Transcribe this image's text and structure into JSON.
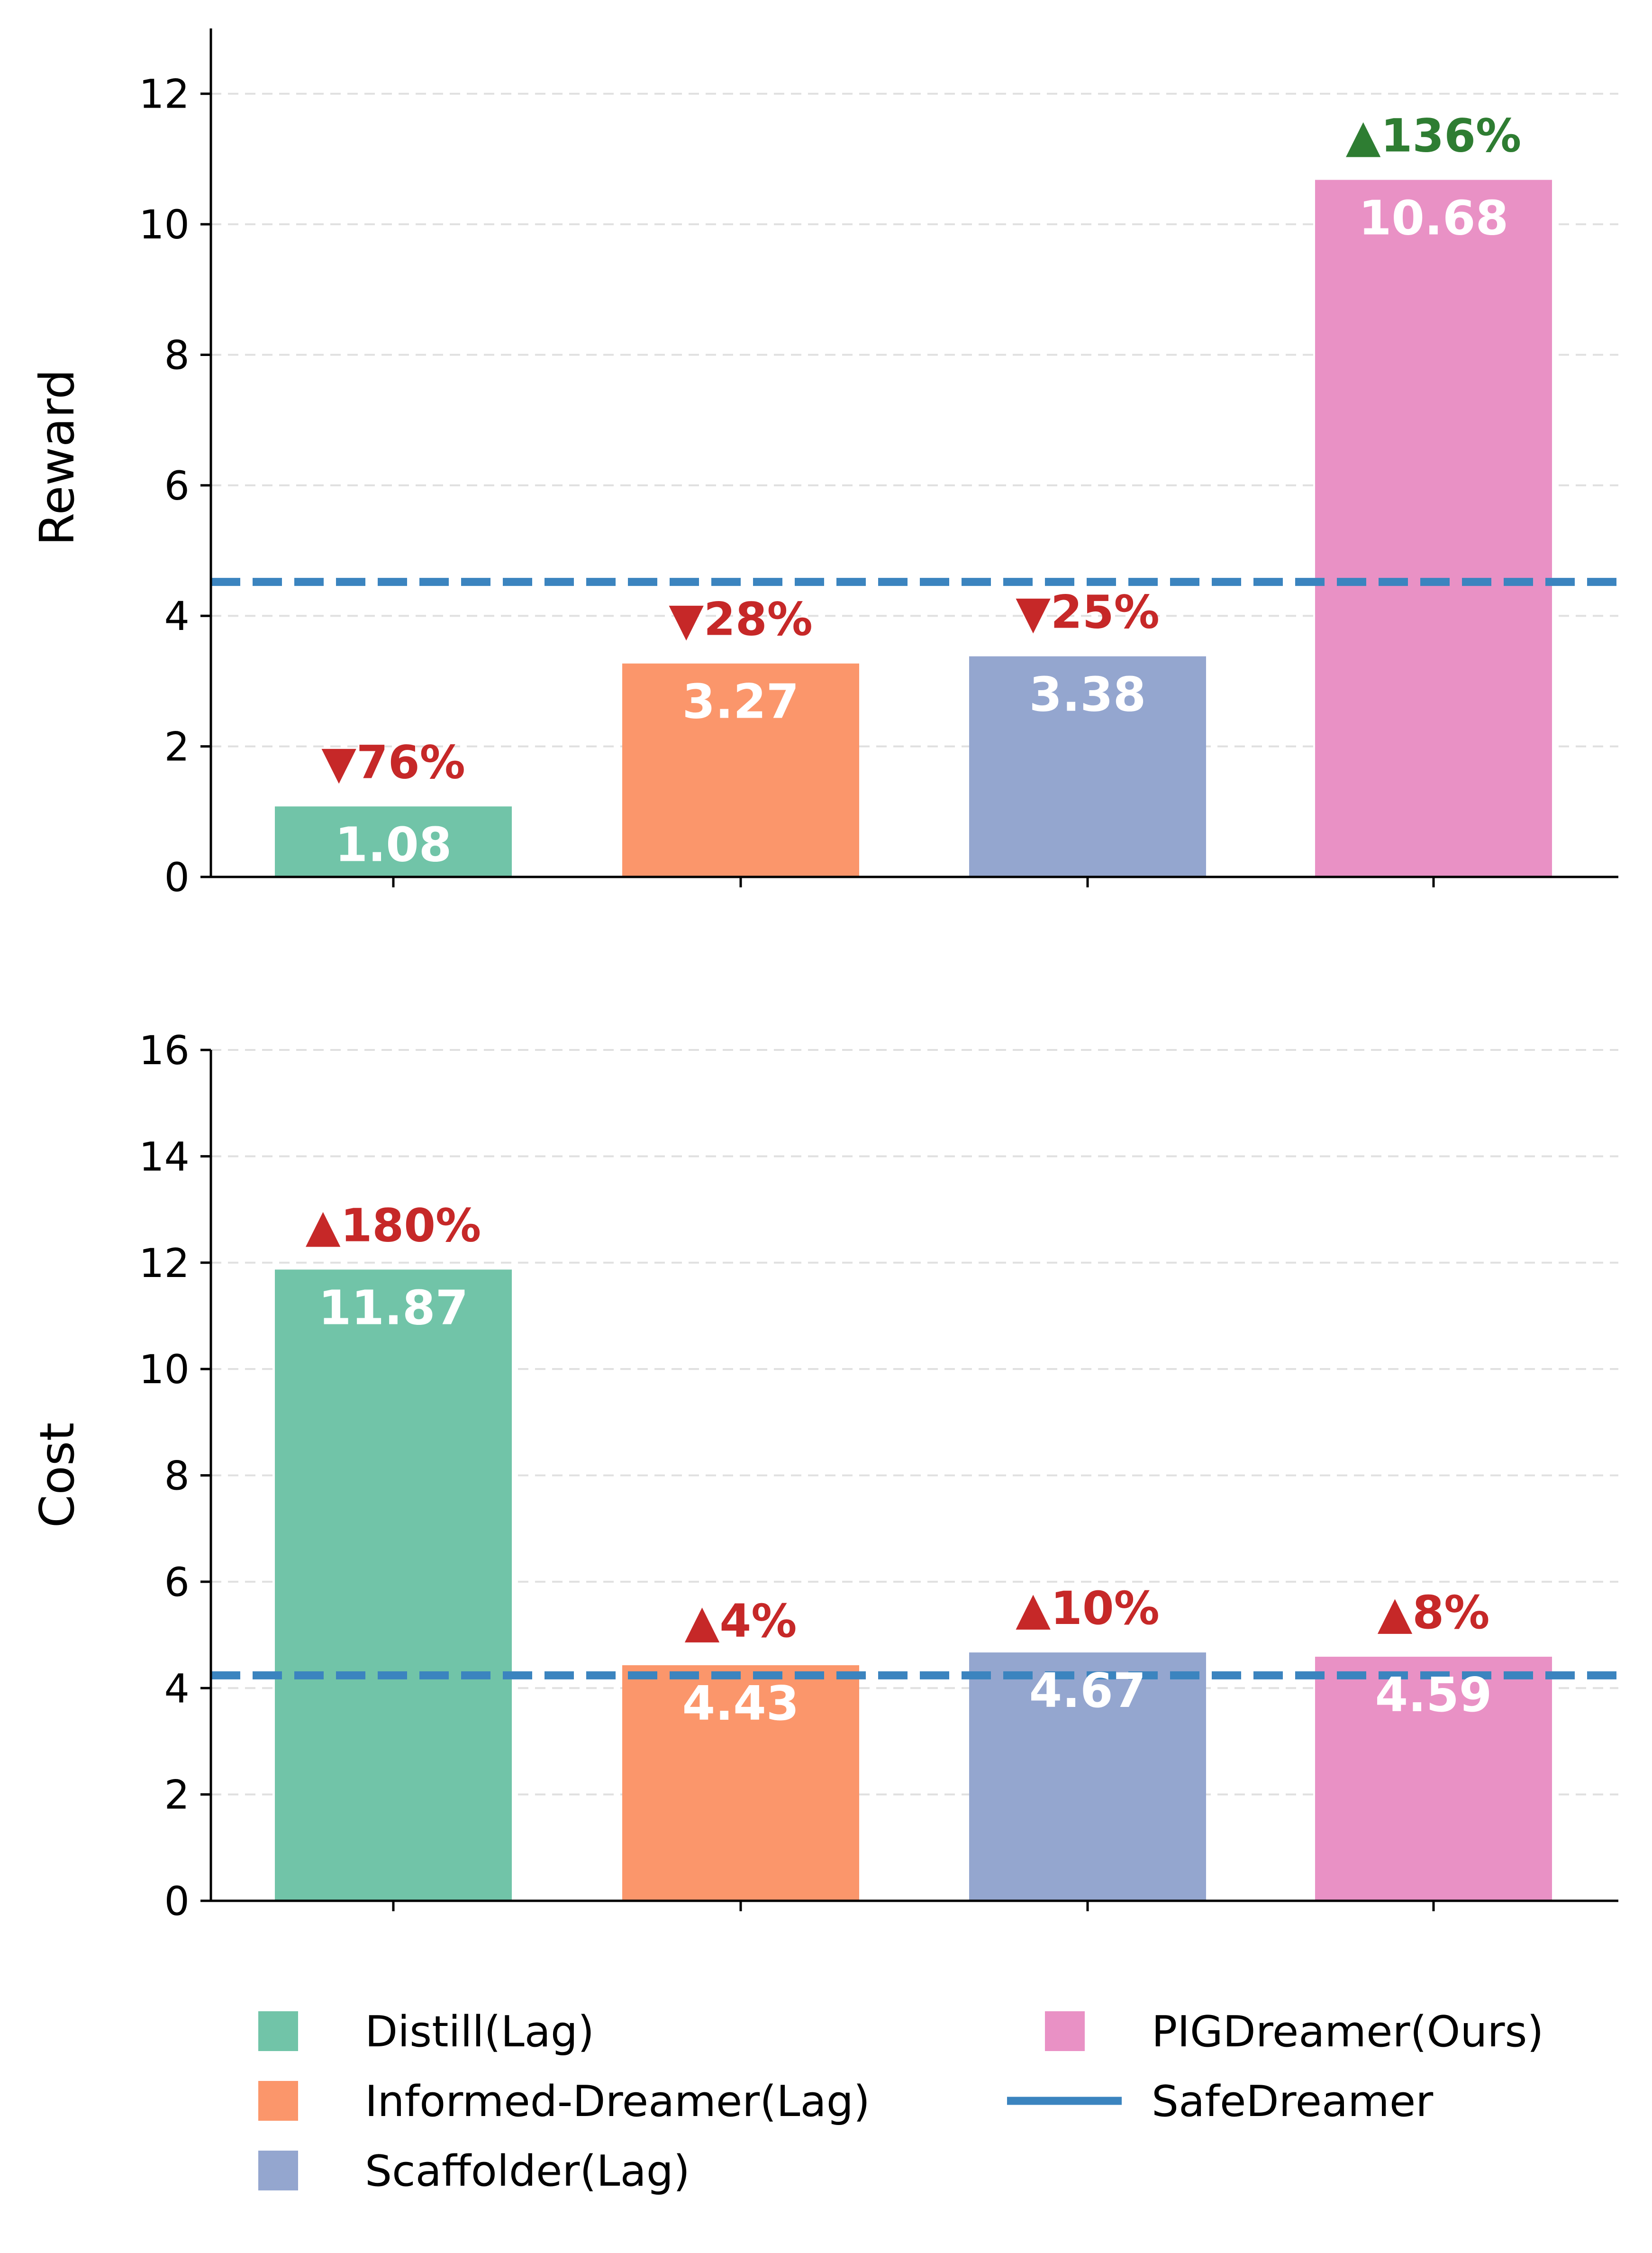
{
  "chart_data": [
    {
      "type": "bar",
      "ylabel": "Reward",
      "ylim": [
        0,
        13
      ],
      "yticks": [
        0,
        2,
        4,
        6,
        8,
        10,
        12
      ],
      "grid": "horizontal-dashed",
      "categories": [
        "Distill(Lag)",
        "Informed-Dreamer(Lag)",
        "Scaffolder(Lag)",
        "PIGDreamer(Ours)"
      ],
      "values": [
        1.08,
        3.27,
        3.38,
        10.68
      ],
      "value_labels": [
        "1.08",
        "3.27",
        "3.38",
        "10.68"
      ],
      "change_labels": [
        "▼76%",
        "▼28%",
        "▼25%",
        "▲136%"
      ],
      "change_directions": [
        "down",
        "down",
        "down",
        "up"
      ],
      "baseline": {
        "name": "SafeDreamer",
        "value": 4.52
      }
    },
    {
      "type": "bar",
      "ylabel": "Cost",
      "ylim": [
        0,
        16
      ],
      "yticks": [
        0,
        2,
        4,
        6,
        8,
        10,
        12,
        14,
        16
      ],
      "grid": "horizontal-dashed",
      "categories": [
        "Distill(Lag)",
        "Informed-Dreamer(Lag)",
        "Scaffolder(Lag)",
        "PIGDreamer(Ours)"
      ],
      "values": [
        11.87,
        4.43,
        4.67,
        4.59
      ],
      "value_labels": [
        "11.87",
        "4.43",
        "4.67",
        "4.59"
      ],
      "change_labels": [
        "▲180%",
        "▲4%",
        "▲10%",
        "▲8%"
      ],
      "change_directions": [
        "up",
        "up",
        "up",
        "up"
      ],
      "baseline": {
        "name": "SafeDreamer",
        "value": 4.24
      }
    }
  ],
  "colors": {
    "series": [
      "#71c4a8",
      "#fb966b",
      "#94a6cf",
      "#e991c5"
    ],
    "baseline": "#3b84bf",
    "increase_good": "#2e7d32",
    "worse": "#c62828",
    "grid": "#e0e0e0"
  },
  "legend": {
    "items": [
      {
        "label": "Distill(Lag)",
        "kind": "patch",
        "color": "#71c4a8"
      },
      {
        "label": "Informed-Dreamer(Lag)",
        "kind": "patch",
        "color": "#fb966b"
      },
      {
        "label": "Scaffolder(Lag)",
        "kind": "patch",
        "color": "#94a6cf"
      },
      {
        "label": "PIGDreamer(Ours)",
        "kind": "patch",
        "color": "#e991c5"
      },
      {
        "label": "SafeDreamer",
        "kind": "line",
        "color": "#3b84bf"
      }
    ]
  }
}
